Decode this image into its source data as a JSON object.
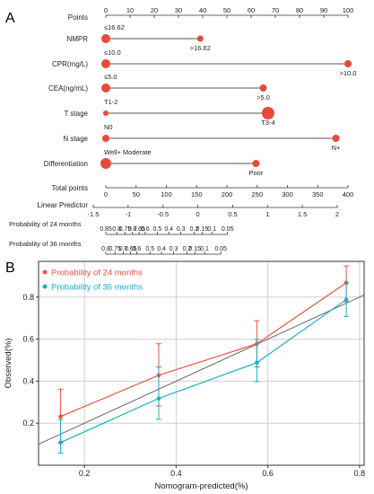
{
  "chart_data": [
    {
      "type": "nomogram",
      "panel_label": "A",
      "points_axis": {
        "label": "Points",
        "min": 0,
        "max": 100,
        "ticks": [
          0,
          10,
          20,
          30,
          40,
          50,
          60,
          70,
          80,
          90,
          100
        ]
      },
      "variables": [
        {
          "label": "NMPR",
          "levels": [
            {
              "text": "≤16.62",
              "points": 0
            },
            {
              "text": ">16.62",
              "points": 39
            }
          ]
        },
        {
          "label": "CPR(mg/L)",
          "levels": [
            {
              "text": "≤10.0",
              "points": 0
            },
            {
              "text": ">10.0",
              "points": 100
            }
          ]
        },
        {
          "label": "CEA(ng/mL)",
          "levels": [
            {
              "text": "≤5.0",
              "points": 0
            },
            {
              "text": ">5.0",
              "points": 65
            }
          ]
        },
        {
          "label": "T stage",
          "levels": [
            {
              "text": "T1-2",
              "points": 0
            },
            {
              "text": "T3-4",
              "points": 67
            }
          ]
        },
        {
          "label": "N stage",
          "levels": [
            {
              "text": "N0",
              "points": 0
            },
            {
              "text": "N+",
              "points": 95
            }
          ]
        },
        {
          "label": "Differentiation",
          "levels": [
            {
              "text": "Well+ Moderate",
              "points": 0
            },
            {
              "text": "Poor",
              "points": 62
            }
          ]
        }
      ],
      "total_points": {
        "label": "Total points",
        "min": 0,
        "max": 400,
        "ticks": [
          0,
          50,
          100,
          150,
          200,
          250,
          300,
          350,
          400
        ]
      },
      "linear_predictor": {
        "label": "Linear Predictor",
        "min": -1.5,
        "max": 2,
        "ticks": [
          -1.5,
          -1,
          -0.5,
          0,
          0.5,
          1,
          1.5,
          2
        ]
      },
      "probability_scales": [
        {
          "label": "Probability of 24 months",
          "ticks": [
            {
              "text": "0.85",
              "total": 0
            },
            {
              "text": "0.8",
              "total": 18
            },
            {
              "text": "0.75",
              "total": 32
            },
            {
              "text": "0.7",
              "total": 44
            },
            {
              "text": "0.65",
              "total": 55
            },
            {
              "text": "0.6",
              "total": 65
            },
            {
              "text": "0.5",
              "total": 85
            },
            {
              "text": "0.4",
              "total": 104
            },
            {
              "text": "0.3",
              "total": 124
            },
            {
              "text": "0.2",
              "total": 146
            },
            {
              "text": "0.15",
              "total": 159
            },
            {
              "text": "0.1",
              "total": 175
            },
            {
              "text": "0.05",
              "total": 201
            }
          ]
        },
        {
          "label": "Probability of 36 months",
          "ticks": [
            {
              "text": "0.8",
              "total": 0
            },
            {
              "text": "0.75",
              "total": 15
            },
            {
              "text": "0.7",
              "total": 29
            },
            {
              "text": "0.65",
              "total": 41
            },
            {
              "text": "0.6",
              "total": 51
            },
            {
              "text": "0.5",
              "total": 73
            },
            {
              "text": "0.4",
              "total": 92
            },
            {
              "text": "0.3",
              "total": 112
            },
            {
              "text": "0.2",
              "total": 134
            },
            {
              "text": "0.15",
              "total": 147
            },
            {
              "text": "0.1",
              "total": 163
            },
            {
              "text": "0.05",
              "total": 190
            }
          ]
        }
      ],
      "colors": {
        "dot": "#e8493a",
        "line": "#555555"
      }
    },
    {
      "type": "line",
      "panel_label": "B",
      "xlabel": "Nomogram-predicted(%)",
      "ylabel": "Observed(%)",
      "xlim": [
        0.1,
        0.81
      ],
      "ylim": [
        0.0,
        0.97
      ],
      "xticks": [
        0.2,
        0.4,
        0.6,
        0.8
      ],
      "yticks": [
        0.2,
        0.4,
        0.6,
        0.8
      ],
      "grid": true,
      "legend_position": "top-left",
      "reference_line": true,
      "series": [
        {
          "name": "Probability of 24 months",
          "color": "#e8553f",
          "x": [
            0.148,
            0.362,
            0.576,
            0.771
          ],
          "y": [
            0.232,
            0.428,
            0.578,
            0.868
          ],
          "lower": [
            0.108,
            0.282,
            0.468,
            0.778
          ],
          "upper": [
            0.362,
            0.578,
            0.688,
            0.948
          ]
        },
        {
          "name": "Probability of 36 months",
          "color": "#1ab0c8",
          "x": [
            0.148,
            0.362,
            0.576,
            0.771
          ],
          "y": [
            0.108,
            0.318,
            0.488,
            0.788
          ],
          "lower": [
            0.058,
            0.218,
            0.398,
            0.708
          ],
          "upper": [
            0.218,
            0.468,
            0.598,
            0.868
          ]
        }
      ]
    }
  ]
}
